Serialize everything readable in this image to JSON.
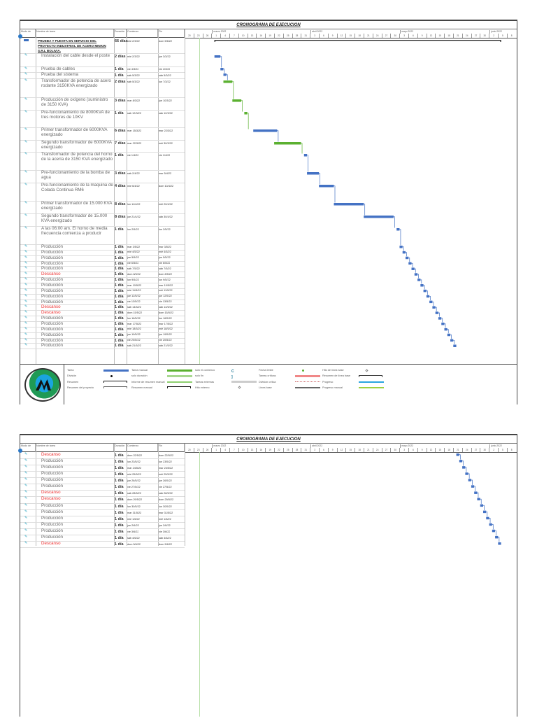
{
  "title": "CRONOGRAMA DE EJECUCION",
  "columns": {
    "mode": "Modo de",
    "name": "Nombre de tarea",
    "duration": "Duración",
    "start": "Comienzo",
    "end": "Fin"
  },
  "timeline": {
    "months": [
      "marzo 2022",
      "abril 2022",
      "mayo 2022",
      "junio 2022"
    ],
    "days": [
      "20",
      "23",
      "26",
      "1",
      "4",
      "7",
      "10",
      "13",
      "16",
      "19",
      "22",
      "25",
      "28",
      "31",
      "3",
      "6",
      "9",
      "12",
      "15",
      "18",
      "21",
      "24",
      "27",
      "30",
      "3",
      "6",
      "9",
      "12",
      "15",
      "18",
      "21",
      "24",
      "27",
      "30",
      "2",
      "5",
      "8"
    ]
  },
  "colors": {
    "task": "#4472c4",
    "manual": "#5bb030",
    "summary": "#222222",
    "rest": "#e83a3a"
  },
  "pages": [
    {
      "tasks": [
        {
          "name": "PRUEBA Y PUESTA EN SERVICIO DEL PROYECTO INDUSTRIAL DE ACERO MINKIN S.R.L BOLIVIA.",
          "duration": "66 días",
          "start": "mié 2/3/22",
          "end": "dom 5/6/22",
          "summary": true
        },
        {
          "name": "Instalación del cable desde el poste",
          "duration": "2 días",
          "start": "mié 2/3/22",
          "end": "jue 3/3/22"
        },
        {
          "name": "Prueba de cables",
          "duration": "1 día",
          "start": "vie 4/3/22",
          "end": "vie 4/3/22"
        },
        {
          "name": "Prueba del sistema",
          "duration": "1 día",
          "start": "sáb 5/3/22",
          "end": "sáb 5/3/22"
        },
        {
          "name": "Transformador de potencia de acero rodante 3150KVA energizado",
          "duration": "2 días",
          "start": "sáb 5/3/22",
          "end": "lun 7/3/22",
          "manual": true
        },
        {
          "name": "Producción de oxígeno (suministro de 3150 KVA)",
          "duration": "3 días",
          "start": "mar 8/3/22",
          "end": "jue 10/3/22",
          "manual": true
        },
        {
          "name": "Pre-funcionamiento de 8000KVA de tres motores de 10KV",
          "duration": "1 día",
          "start": "sáb 12/3/22",
          "end": "sáb 12/3/22",
          "manual": true
        },
        {
          "name": "Primer transformador de 6000KVA energizado",
          "duration": "6 días",
          "start": "mar 15/3/22",
          "end": "mar 22/3/22"
        },
        {
          "name": "Segundo transformador de 6000KVA energizado",
          "duration": "7 días",
          "start": "mar 22/3/22",
          "end": "mié 30/3/22",
          "manual": true
        },
        {
          "name": "Transformador de potencia del horno de la acería de 3150 KVA energizado",
          "duration": "1 día",
          "start": "vie 1/4/22",
          "end": "vie 1/4/22"
        },
        {
          "name": "Pre-funcionamiento de la bomba de agua",
          "duration": "3 días",
          "start": "sáb 2/4/22",
          "end": "mar 5/4/22"
        },
        {
          "name": "Pre-funcionamiento de la maquina de Colada Continua RM6",
          "duration": "4 días",
          "start": "mié 6/4/22",
          "end": "dom 10/4/22"
        },
        {
          "name": "Primer transformador de 15.000 KVA energizado",
          "duration": "8 días",
          "start": "lun 11/4/22",
          "end": "mié 20/4/22"
        },
        {
          "name": "Segundo transformador de 15.000 KVA energizado",
          "duration": "8 días",
          "start": "jue 21/4/22",
          "end": "sáb 30/4/22"
        },
        {
          "name": "A las 06:00 am. El horno de media frecuencia comienza a producir",
          "duration": "1 día",
          "start": "lun 2/5/22",
          "end": "lun 2/5/22"
        },
        {
          "name": "Producción",
          "duration": "1 día",
          "start": "mar 3/5/22",
          "end": "mar 3/5/22"
        },
        {
          "name": "Producción",
          "duration": "1 día",
          "start": "mié 4/5/22",
          "end": "mié 4/5/22"
        },
        {
          "name": "Producción",
          "duration": "1 día",
          "start": "jue 5/5/22",
          "end": "jue 5/5/22"
        },
        {
          "name": "Producción",
          "duration": "1 día",
          "start": "vie 6/5/22",
          "end": "vie 6/5/22"
        },
        {
          "name": "Producción",
          "duration": "1 día",
          "start": "sáb 7/5/22",
          "end": "sáb 7/5/22"
        },
        {
          "name": "Descanso",
          "duration": "1 día",
          "start": "dom 8/5/22",
          "end": "dom 8/5/22",
          "rest": true
        },
        {
          "name": "Producción",
          "duration": "1 día",
          "start": "lun 9/5/22",
          "end": "lun 9/5/22"
        },
        {
          "name": "Producción",
          "duration": "1 día",
          "start": "mar 10/5/22",
          "end": "mar 10/5/22"
        },
        {
          "name": "Producción",
          "duration": "1 día",
          "start": "mié 11/5/22",
          "end": "mié 11/5/22"
        },
        {
          "name": "Producción",
          "duration": "1 día",
          "start": "jue 12/5/22",
          "end": "jue 12/5/22"
        },
        {
          "name": "Producción",
          "duration": "1 día",
          "start": "vie 13/5/22",
          "end": "vie 13/5/22"
        },
        {
          "name": "Descanso",
          "duration": "1 día",
          "start": "sáb 14/5/22",
          "end": "sáb 14/5/22",
          "rest": true
        },
        {
          "name": "Descanso",
          "duration": "1 día",
          "start": "dom 15/5/22",
          "end": "dom 15/5/22",
          "rest": true
        },
        {
          "name": "Producción",
          "duration": "1 día",
          "start": "lun 16/5/22",
          "end": "lun 16/5/22"
        },
        {
          "name": "Producción",
          "duration": "1 día",
          "start": "mar 17/5/22",
          "end": "mar 17/5/22"
        },
        {
          "name": "Producción",
          "duration": "1 día",
          "start": "mié 18/5/22",
          "end": "mié 18/5/22"
        },
        {
          "name": "Producción",
          "duration": "1 día",
          "start": "jue 19/5/22",
          "end": "jue 19/5/22"
        },
        {
          "name": "Producción",
          "duration": "1 día",
          "start": "vie 20/5/22",
          "end": "vie 20/5/22"
        },
        {
          "name": "Producción",
          "duration": "1 día",
          "start": "sáb 21/5/22",
          "end": "sáb 21/5/22"
        }
      ]
    },
    {
      "tasks": [
        {
          "name": "Descanso",
          "duration": "1 día",
          "start": "dom 22/5/22",
          "end": "dom 22/5/22",
          "rest": true
        },
        {
          "name": "Producción",
          "duration": "1 día",
          "start": "lun 23/5/22",
          "end": "lun 23/5/22"
        },
        {
          "name": "Producción",
          "duration": "1 día",
          "start": "mar 24/5/22",
          "end": "mar 24/5/22"
        },
        {
          "name": "Producción",
          "duration": "1 día",
          "start": "mié 25/5/22",
          "end": "mié 25/5/22"
        },
        {
          "name": "Producción",
          "duration": "1 día",
          "start": "jue 26/5/22",
          "end": "jue 26/5/22"
        },
        {
          "name": "Producción",
          "duration": "1 día",
          "start": "vie 27/5/22",
          "end": "vie 27/5/22"
        },
        {
          "name": "Descanso",
          "duration": "1 día",
          "start": "sáb 28/5/22",
          "end": "sáb 28/5/22",
          "rest": true
        },
        {
          "name": "Descanso",
          "duration": "1 día",
          "start": "dom 29/5/22",
          "end": "dom 29/5/22",
          "rest": true
        },
        {
          "name": "Producción",
          "duration": "1 día",
          "start": "lun 30/5/22",
          "end": "lun 30/5/22"
        },
        {
          "name": "Producción",
          "duration": "1 día",
          "start": "mar 31/5/22",
          "end": "mar 31/5/22"
        },
        {
          "name": "Producción",
          "duration": "1 día",
          "start": "mié 1/6/22",
          "end": "mié 1/6/22"
        },
        {
          "name": "Producción",
          "duration": "1 día",
          "start": "jue 2/6/22",
          "end": "jue 2/6/22"
        },
        {
          "name": "Producción",
          "duration": "1 día",
          "start": "vie 3/6/22",
          "end": "vie 3/6/22"
        },
        {
          "name": "Producción",
          "duration": "1 día",
          "start": "sáb 4/6/22",
          "end": "sáb 4/6/22"
        },
        {
          "name": "Descanso",
          "duration": "1 día",
          "start": "dom 5/6/22",
          "end": "dom 5/6/22",
          "rest": true
        }
      ]
    }
  ],
  "legend": [
    [
      "Tarea",
      "Tarea manual",
      "solo el comienzo",
      "Fecha límite",
      "Hito de línea base"
    ],
    [
      "División",
      "solo duración",
      "solo fin",
      "Tareas críticas",
      "Resumen de línea base"
    ],
    [
      "Resumen",
      "Informe de resumen manual",
      "Tareas externas",
      "División crítica",
      "Progreso"
    ],
    [
      "Resumen del proyecto",
      "Resumen manual",
      "Hito externo",
      "Línea base",
      "Progreso manual"
    ]
  ],
  "logo_text": "MINKIN S.R.L. BOLIVIA"
}
